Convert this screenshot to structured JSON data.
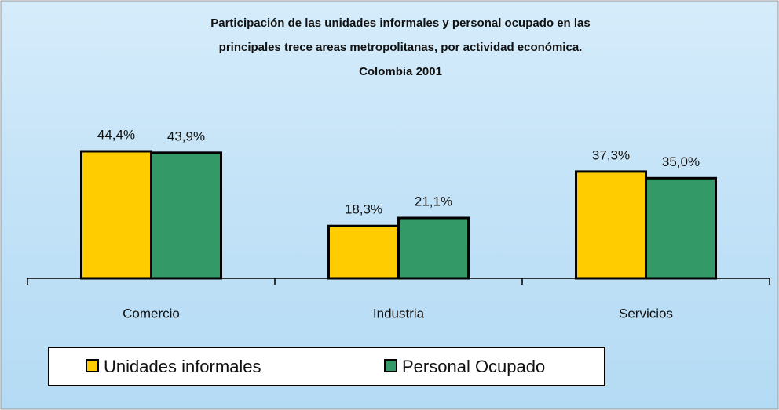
{
  "chart_data": {
    "type": "bar",
    "title": [
      "Participación de las unidades  informales y personal ocupado  en las",
      "principales trece areas metropolitanas, por actividad económica.",
      "Colombia 2001"
    ],
    "categories": [
      "Comercio",
      "Industria",
      "Servicios"
    ],
    "series": [
      {
        "name": "Unidades informales",
        "color": "#ffcc00",
        "values": [
          44.4,
          18.3,
          37.3
        ],
        "value_labels": [
          "44,4%",
          "18,3%",
          "37,3%"
        ]
      },
      {
        "name": "Personal Ocupado",
        "color": "#339966",
        "values": [
          43.9,
          21.1,
          35.0
        ],
        "value_labels": [
          "43,9%",
          "21,1%",
          "35,0%"
        ]
      }
    ],
    "legend": "bottom"
  }
}
